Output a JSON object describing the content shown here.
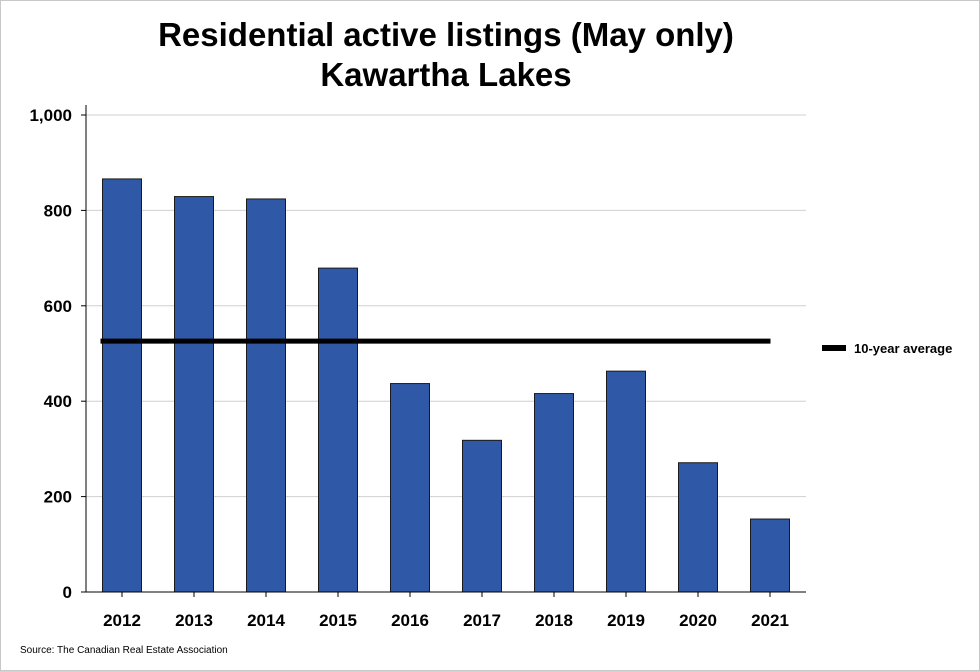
{
  "chart_data": {
    "type": "bar",
    "title": "Residential active listings (May only)",
    "subtitle": "Kawartha Lakes",
    "categories": [
      "2012",
      "2013",
      "2014",
      "2015",
      "2016",
      "2017",
      "2018",
      "2019",
      "2020",
      "2021"
    ],
    "series": [
      {
        "values": [
          866,
          829,
          824,
          679,
          437,
          318,
          416,
          463,
          271,
          153
        ]
      }
    ],
    "reference_lines": [
      {
        "name": "10-year average",
        "value": 526
      }
    ],
    "ylim": [
      0,
      1000
    ],
    "yticks": [
      0,
      200,
      400,
      600,
      800,
      1000
    ],
    "ytick_labels": [
      "0",
      "200",
      "400",
      "600",
      "800",
      "1,000"
    ],
    "xlabel": "",
    "ylabel": "",
    "grid": true,
    "legend_position": "right",
    "bar_color": "#2f59a6",
    "line_color": "#000000",
    "source": "Source: The Canadian Real Estate Association"
  }
}
